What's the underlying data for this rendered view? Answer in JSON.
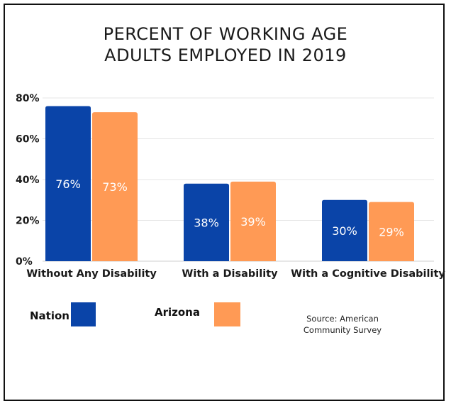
{
  "title_lines": [
    "PERCENT OF WORKING AGE",
    "ADULTS EMPLOYED IN 2019"
  ],
  "colors": {
    "nation": "#0a44a8",
    "arizona": "#ff9a55",
    "grid": "#e6e6e6",
    "text": "#1a1a1a"
  },
  "legend": {
    "nation": "Nation",
    "arizona": "Arizona"
  },
  "source": "Source: American Community Survey",
  "chart_data": {
    "type": "bar",
    "categories": [
      "Without Any Disability",
      "With a Disability",
      "With a Cognitive Disability"
    ],
    "series": [
      {
        "name": "Nation",
        "values": [
          76,
          38,
          30
        ],
        "labels": [
          "76%",
          "38%",
          "30%"
        ]
      },
      {
        "name": "Arizona",
        "values": [
          73,
          39,
          29
        ],
        "labels": [
          "73%",
          "39%",
          "29%"
        ]
      }
    ],
    "yticks": [
      "0%",
      "20%",
      "40%",
      "60%",
      "80%"
    ],
    "ylim": [
      0,
      80
    ],
    "grid": true,
    "legend_position": "bottom-left"
  }
}
